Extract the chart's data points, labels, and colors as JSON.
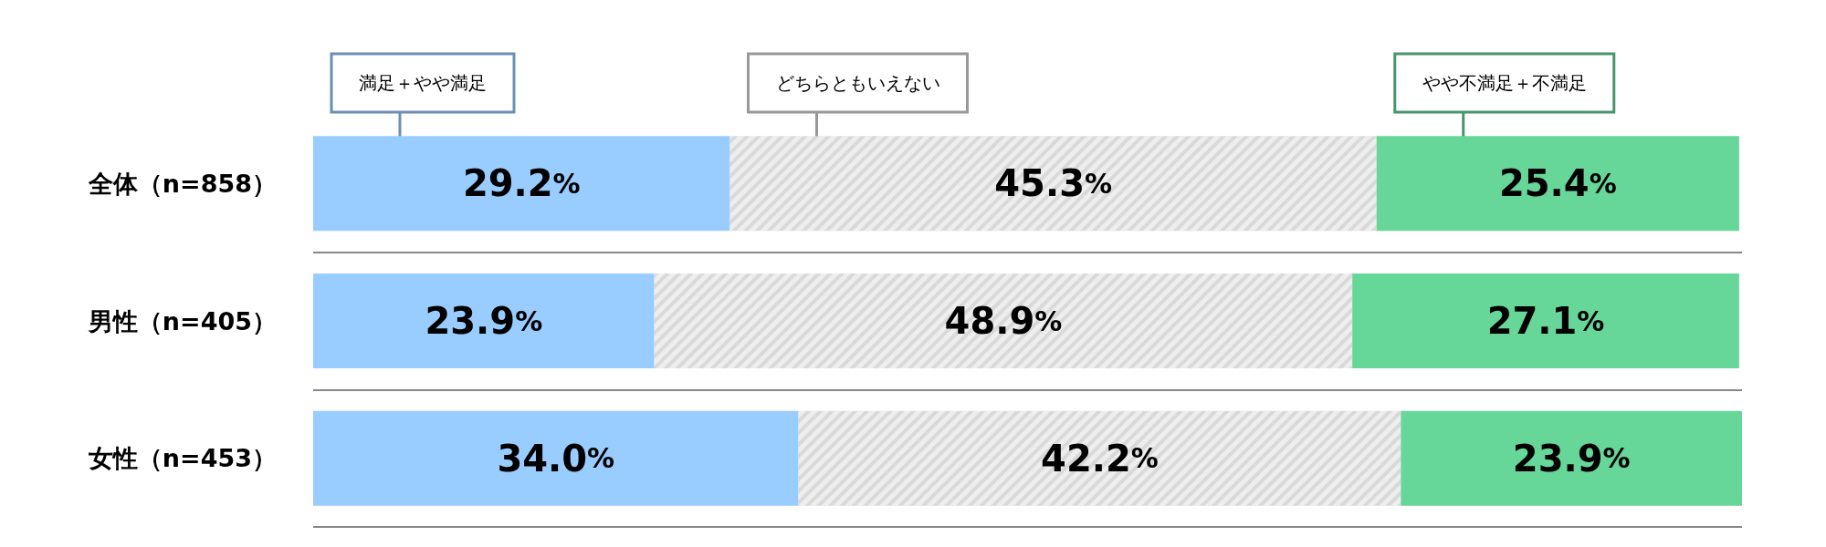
{
  "chart_data": {
    "type": "bar",
    "orientation": "horizontal",
    "stacked": true,
    "categories": [
      "全体（n=858）",
      "男性（n=405）",
      "女性（n=453）"
    ],
    "series": [
      {
        "name": "満足＋やや満足",
        "color": "#99ccff",
        "values": [
          29.2,
          23.9,
          34.0
        ],
        "value_labels": [
          "29.2%",
          "23.9%",
          "34.0%"
        ]
      },
      {
        "name": "どちらともいえない",
        "color": "#d9d9d9",
        "values": [
          45.3,
          48.9,
          42.2
        ],
        "value_labels": [
          "45.3%",
          "48.9%",
          "42.2%"
        ]
      },
      {
        "name": "やや不満足＋不満足",
        "color": "#66d699",
        "values": [
          25.4,
          27.1,
          23.9
        ],
        "value_labels": [
          "25.4%",
          "27.1%",
          "23.9%"
        ]
      }
    ],
    "legend": "top",
    "grid": "y"
  }
}
